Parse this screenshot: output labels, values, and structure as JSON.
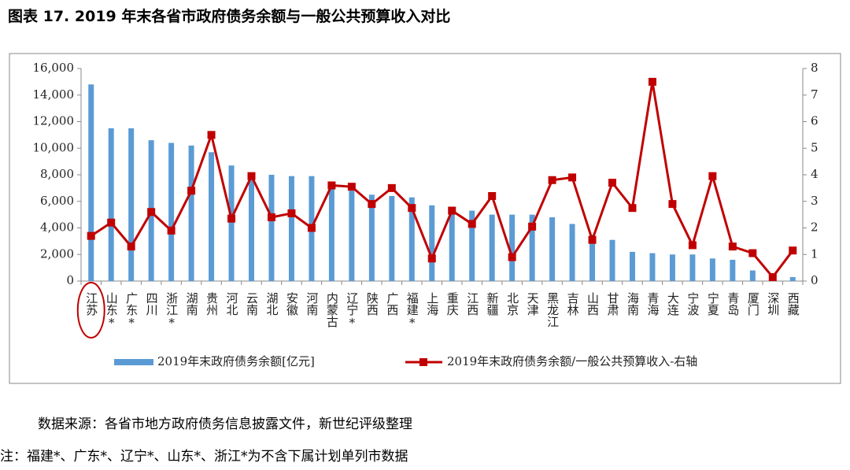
{
  "title": "图表 17. 2019 年末各省市政府债务余额与一般公共预算收入对比",
  "chart_data": {
    "type": "bar-line",
    "categories": [
      "江苏",
      "山东*",
      "广东*",
      "四川",
      "浙江*",
      "湖南",
      "贵州",
      "河北",
      "云南",
      "湖北",
      "安徽",
      "河南",
      "内蒙古",
      "辽宁*",
      "陕西",
      "广西",
      "福建*",
      "上海",
      "重庆",
      "江西",
      "新疆",
      "北京",
      "天津",
      "黑龙江",
      "吉林",
      "山西",
      "甘肃",
      "海南",
      "青海",
      "大连",
      "宁波",
      "宁夏",
      "青岛",
      "厦门",
      "深圳",
      "西藏"
    ],
    "series": [
      {
        "name": "2019年末政府债务余额[亿元]",
        "type": "bar",
        "color": "#5b9bd5",
        "values": [
          14800,
          11500,
          11500,
          10600,
          10400,
          10200,
          9700,
          8700,
          8100,
          8000,
          7900,
          7900,
          7100,
          6800,
          6500,
          6400,
          6300,
          5700,
          5600,
          5300,
          5000,
          5000,
          5000,
          4800,
          4300,
          3500,
          3100,
          2200,
          2100,
          2000,
          2000,
          1700,
          1600,
          800,
          400,
          300
        ]
      },
      {
        "name": "2019年末政府债务余额/一般公共预算收入-右轴",
        "type": "line",
        "axis": "y2",
        "color": "#c00000",
        "values": [
          1.7,
          2.2,
          1.3,
          2.6,
          1.9,
          3.4,
          5.5,
          2.35,
          3.95,
          2.4,
          2.55,
          2.0,
          3.6,
          3.55,
          2.9,
          3.5,
          2.75,
          0.85,
          2.65,
          2.15,
          3.2,
          0.9,
          2.05,
          3.8,
          3.9,
          1.55,
          3.7,
          2.75,
          7.5,
          2.9,
          1.35,
          3.95,
          1.3,
          1.05,
          0.15,
          1.15
        ]
      }
    ],
    "ylim": [
      0,
      16000
    ],
    "yticks": [
      0,
      {
        "value": 2000,
        "label": "2,000"
      },
      {
        "value": 4000,
        "label": "4,000"
      },
      {
        "value": 6000,
        "label": "6,000"
      },
      {
        "value": 8000,
        "label": "8,000"
      },
      {
        "value": 10000,
        "label": "10,000"
      },
      {
        "value": 12000,
        "label": "12,000"
      },
      {
        "value": 14000,
        "label": "14,000"
      },
      {
        "value": 16000,
        "label": "16,000"
      }
    ],
    "y2lim": [
      0,
      8
    ],
    "y2ticks": [
      0,
      1,
      2,
      3,
      4,
      5,
      6,
      7,
      8
    ],
    "legend": "bottom"
  },
  "source": "数据来源：各省市地方政府债务信息披露文件，新世纪评级整理",
  "note": "注：福建*、广东*、辽宁*、山东*、浙江*为不含下属计划单列市数据"
}
